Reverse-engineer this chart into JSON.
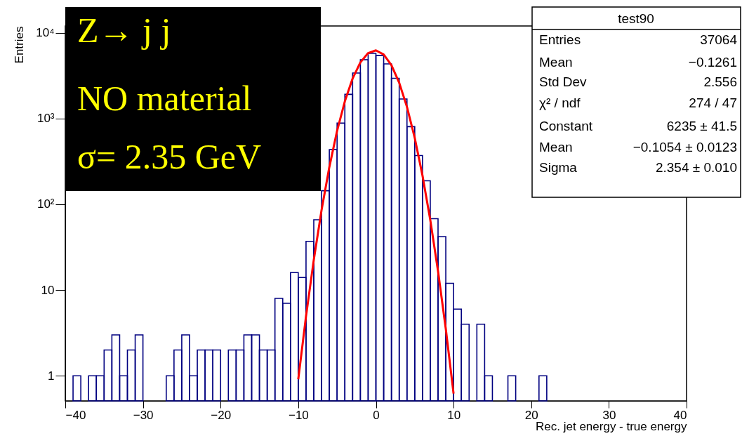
{
  "chart_data": {
    "type": "histogram",
    "xlabel": "Rec. jet energy - true energy",
    "ylabel": "Entries",
    "annotations": [
      "Z→ j j",
      "NO material",
      "σ= 2.35 GeV",
      "test90",
      "Entries",
      "37064",
      "Mean",
      "−0.1261",
      "Std Dev",
      "2.556",
      "χ² / ndf",
      "274 / 47",
      "Constant",
      "6235 ± 41.5",
      "Mean",
      "−0.1054 ± 0.0123",
      "Sigma",
      "2.354 ± 0.010"
    ],
    "bins": [
      -40,
      -39,
      -38,
      -37,
      -36,
      -35,
      -34,
      -33,
      -32,
      -31,
      -30,
      -29,
      -28,
      -27,
      -26,
      -25,
      -24,
      -23,
      -22,
      -21,
      -20,
      -19,
      -18,
      -17,
      -16,
      -15,
      -14,
      -13,
      -12,
      -11,
      -10,
      -9,
      -8,
      -7,
      -6,
      -5,
      -4,
      -3,
      -2,
      -1,
      0,
      1,
      2,
      3,
      4,
      5,
      6,
      7,
      8,
      9,
      10,
      11,
      12,
      13,
      14,
      15,
      16,
      17,
      18,
      19,
      20,
      21,
      22,
      23,
      24,
      25,
      26,
      27,
      28,
      29,
      30,
      31,
      32,
      33,
      34,
      35,
      36,
      37,
      38,
      39,
      40
    ],
    "series": [
      {
        "color": "#000080",
        "values": [
          null,
          1,
          null,
          1,
          1,
          2,
          3,
          1,
          2,
          3,
          null,
          null,
          null,
          1,
          2,
          3,
          1,
          2,
          2,
          2,
          null,
          2,
          2,
          3,
          3,
          2,
          2,
          8,
          7,
          16,
          14,
          37,
          66,
          144,
          434,
          883,
          1915,
          3390,
          4845,
          5760,
          5420,
          4335,
          2950,
          1690,
          805,
          371,
          188,
          68,
          42,
          12,
          6,
          4,
          null,
          4,
          1,
          null,
          null,
          1,
          null,
          null,
          null,
          1,
          null,
          null,
          null,
          null,
          null,
          null,
          null,
          null,
          null,
          null,
          null,
          null,
          null,
          null,
          null,
          null,
          null,
          null
        ]
      },
      {
        "type": "line",
        "color": "#ff0000",
        "x": [
          -10,
          -9,
          -8,
          -7,
          -6,
          -5,
          -4,
          -3,
          -2,
          -1,
          0,
          1,
          2,
          3,
          4,
          5,
          6,
          7,
          8,
          9,
          10
        ],
        "values": [
          0.91,
          4.95,
          22.5,
          85.5,
          271,
          718,
          1586,
          2927,
          4510,
          5800,
          6228,
          5584,
          4179,
          2612,
          1364,
          594,
          216,
          65.6,
          16.6,
          3.52,
          0.62
        ]
      }
    ],
    "xlim": [
      -40,
      40
    ],
    "xticks": [
      -40,
      -30,
      -20,
      -10,
      0,
      10,
      20,
      30,
      40
    ],
    "ylim": [
      0.51,
      12000
    ],
    "log": true,
    "yticks": [
      1,
      10,
      {
        "value": 100,
        "label": "10²"
      },
      {
        "value": 1000,
        "label": "10³"
      },
      {
        "value": 10000,
        "label": "10⁴"
      }
    ],
    "grid": false
  }
}
